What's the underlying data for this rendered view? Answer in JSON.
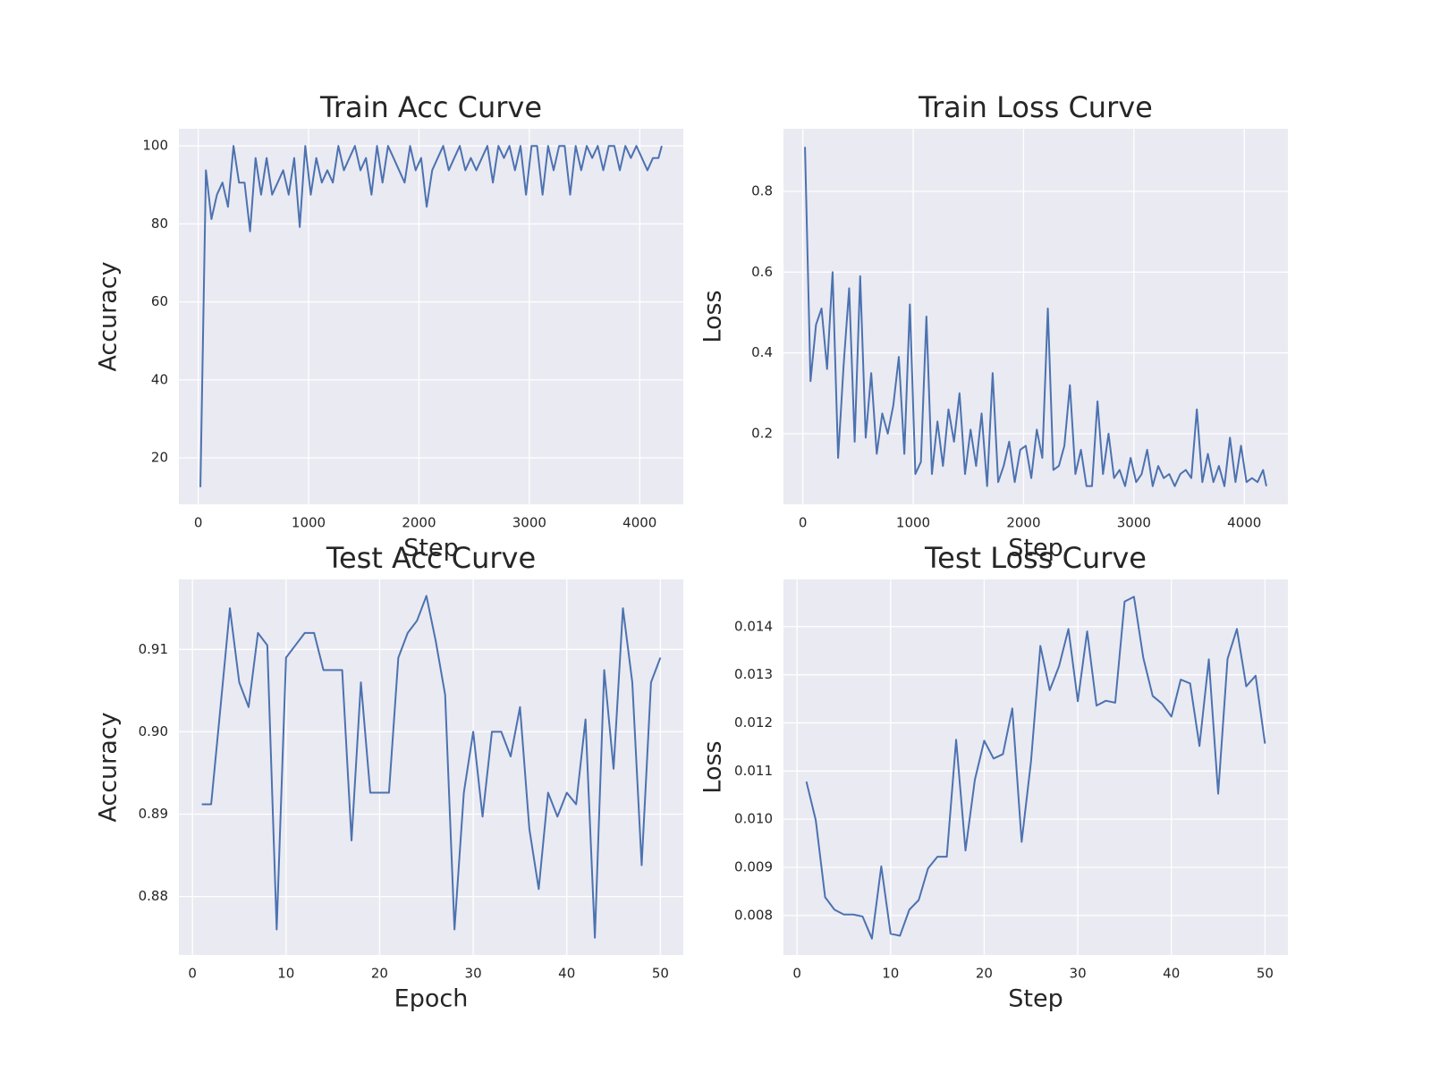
{
  "chart_data": [
    {
      "type": "line",
      "title": "Train Acc Curve",
      "xlabel": "Step",
      "ylabel": "Accuracy",
      "color": "#4c72b0",
      "grid": true,
      "x": [
        20,
        70,
        120,
        170,
        220,
        270,
        320,
        370,
        420,
        470,
        520,
        570,
        620,
        670,
        720,
        770,
        820,
        870,
        920,
        970,
        1020,
        1070,
        1120,
        1170,
        1220,
        1270,
        1320,
        1370,
        1420,
        1470,
        1520,
        1570,
        1620,
        1670,
        1720,
        1770,
        1820,
        1870,
        1920,
        1970,
        2020,
        2070,
        2120,
        2170,
        2220,
        2270,
        2320,
        2370,
        2420,
        2470,
        2520,
        2570,
        2620,
        2670,
        2720,
        2770,
        2820,
        2870,
        2920,
        2970,
        3020,
        3070,
        3120,
        3170,
        3220,
        3270,
        3320,
        3370,
        3420,
        3470,
        3520,
        3570,
        3620,
        3670,
        3720,
        3770,
        3820,
        3870,
        3920,
        3970,
        4020,
        4070,
        4120,
        4170,
        4200
      ],
      "values": [
        12.5,
        93.75,
        81.25,
        87.5,
        90.6,
        84.4,
        100,
        90.6,
        90.6,
        78.1,
        96.9,
        87.5,
        96.9,
        87.5,
        90.6,
        93.75,
        87.5,
        96.9,
        79.2,
        100,
        87.5,
        96.9,
        90.6,
        93.75,
        90.6,
        100,
        93.75,
        96.9,
        100,
        93.75,
        96.9,
        87.5,
        100,
        90.6,
        100,
        96.9,
        93.75,
        90.6,
        100,
        93.75,
        96.9,
        84.4,
        93.75,
        96.9,
        100,
        93.75,
        96.9,
        100,
        93.75,
        96.9,
        93.75,
        96.9,
        100,
        90.6,
        100,
        96.9,
        100,
        93.75,
        100,
        87.5,
        100,
        100,
        87.5,
        100,
        93.75,
        100,
        100,
        87.5,
        100,
        93.75,
        100,
        96.9,
        100,
        93.75,
        100,
        100,
        93.75,
        100,
        96.9,
        100,
        96.9,
        93.75,
        96.9,
        96.9,
        100
      ],
      "xlim": [
        -175,
        4395
      ],
      "ylim": [
        8.1,
        104.4
      ],
      "xticks": [
        0,
        1000,
        2000,
        3000,
        4000
      ],
      "yticks": [
        20,
        40,
        60,
        80,
        100
      ]
    },
    {
      "type": "line",
      "title": "Train Loss Curve",
      "xlabel": "Step",
      "ylabel": "Loss",
      "color": "#4c72b0",
      "grid": true,
      "x": [
        20,
        70,
        120,
        170,
        220,
        270,
        320,
        370,
        420,
        470,
        520,
        570,
        620,
        670,
        720,
        770,
        820,
        870,
        920,
        970,
        1020,
        1070,
        1120,
        1170,
        1220,
        1270,
        1320,
        1370,
        1420,
        1470,
        1520,
        1570,
        1620,
        1670,
        1720,
        1770,
        1820,
        1870,
        1920,
        1970,
        2020,
        2070,
        2120,
        2170,
        2220,
        2270,
        2320,
        2370,
        2420,
        2470,
        2520,
        2570,
        2620,
        2670,
        2720,
        2770,
        2820,
        2870,
        2920,
        2970,
        3020,
        3070,
        3120,
        3170,
        3220,
        3270,
        3320,
        3370,
        3420,
        3470,
        3520,
        3570,
        3620,
        3670,
        3720,
        3770,
        3820,
        3870,
        3920,
        3970,
        4020,
        4070,
        4120,
        4170,
        4200
      ],
      "values": [
        0.91,
        0.33,
        0.47,
        0.51,
        0.36,
        0.6,
        0.14,
        0.37,
        0.56,
        0.18,
        0.59,
        0.19,
        0.35,
        0.15,
        0.25,
        0.2,
        0.27,
        0.39,
        0.15,
        0.52,
        0.1,
        0.13,
        0.49,
        0.1,
        0.23,
        0.12,
        0.26,
        0.18,
        0.3,
        0.1,
        0.21,
        0.12,
        0.25,
        0.07,
        0.35,
        0.08,
        0.12,
        0.18,
        0.08,
        0.16,
        0.17,
        0.09,
        0.21,
        0.14,
        0.51,
        0.11,
        0.12,
        0.17,
        0.32,
        0.1,
        0.16,
        0.07,
        0.07,
        0.28,
        0.1,
        0.2,
        0.09,
        0.11,
        0.07,
        0.14,
        0.08,
        0.1,
        0.16,
        0.07,
        0.12,
        0.09,
        0.1,
        0.07,
        0.1,
        0.11,
        0.09,
        0.26,
        0.08,
        0.15,
        0.08,
        0.12,
        0.07,
        0.19,
        0.08,
        0.17,
        0.08,
        0.09,
        0.08,
        0.11,
        0.07
      ],
      "xlim": [
        -175,
        4395
      ],
      "ylim": [
        0.025,
        0.955
      ],
      "xticks": [
        0,
        1000,
        2000,
        3000,
        4000
      ],
      "yticks": [
        0.2,
        0.4,
        0.6,
        0.8
      ]
    },
    {
      "type": "line",
      "title": "Test Acc Curve",
      "xlabel": "Epoch",
      "ylabel": "Accuracy",
      "color": "#4c72b0",
      "grid": true,
      "x": [
        1,
        2,
        3,
        4,
        5,
        6,
        7,
        8,
        9,
        10,
        11,
        12,
        13,
        14,
        15,
        16,
        17,
        18,
        19,
        20,
        21,
        22,
        23,
        24,
        25,
        26,
        27,
        28,
        29,
        30,
        31,
        32,
        33,
        34,
        35,
        36,
        37,
        38,
        39,
        40,
        41,
        42,
        43,
        44,
        45,
        46,
        47,
        48,
        49,
        50
      ],
      "values": [
        0.8912,
        0.8912,
        0.903,
        0.915,
        0.906,
        0.903,
        0.912,
        0.9105,
        0.876,
        0.909,
        0.9105,
        0.912,
        0.912,
        0.9075,
        0.9075,
        0.9075,
        0.8868,
        0.906,
        0.8926,
        0.8926,
        0.8926,
        0.909,
        0.912,
        0.9135,
        0.9165,
        0.911,
        0.9045,
        0.876,
        0.8926,
        0.9,
        0.8897,
        0.9,
        0.9,
        0.897,
        0.903,
        0.8882,
        0.8809,
        0.8926,
        0.8897,
        0.8926,
        0.8912,
        0.9015,
        0.875,
        0.9075,
        0.8955,
        0.915,
        0.906,
        0.8838,
        0.906,
        0.909
      ],
      "xlim": [
        -1.45,
        52.45
      ],
      "ylim": [
        0.8729,
        0.9185
      ],
      "xticks": [
        0,
        10,
        20,
        30,
        40,
        50
      ],
      "yticks": [
        {
          "value": 0.88,
          "label": "0.88"
        },
        0.89,
        {
          "value": 0.9,
          "label": "0.90"
        },
        0.91
      ]
    },
    {
      "type": "line",
      "title": "Test Loss Curve",
      "xlabel": "Step",
      "ylabel": "Loss",
      "color": "#4c72b0",
      "grid": true,
      "x": [
        1,
        2,
        3,
        4,
        5,
        6,
        7,
        8,
        9,
        10,
        11,
        12,
        13,
        14,
        15,
        16,
        17,
        18,
        19,
        20,
        21,
        22,
        23,
        24,
        25,
        26,
        27,
        28,
        29,
        30,
        31,
        32,
        33,
        34,
        35,
        36,
        37,
        38,
        39,
        40,
        41,
        42,
        43,
        44,
        45,
        46,
        47,
        48,
        49,
        50
      ],
      "values": [
        0.01078,
        0.00998,
        0.00838,
        0.00812,
        0.00802,
        0.00802,
        0.00798,
        0.00752,
        0.00902,
        0.00762,
        0.00758,
        0.00812,
        0.00832,
        0.00898,
        0.00922,
        0.00922,
        0.01165,
        0.00935,
        0.01082,
        0.01163,
        0.01126,
        0.01135,
        0.0123,
        0.00953,
        0.0112,
        0.0136,
        0.01268,
        0.01318,
        0.01395,
        0.01245,
        0.0139,
        0.01236,
        0.01246,
        0.01242,
        0.01452,
        0.01462,
        0.01335,
        0.01256,
        0.0124,
        0.01213,
        0.0129,
        0.01282,
        0.01152,
        0.01332,
        0.01053,
        0.01333,
        0.01395,
        0.01276,
        0.01298,
        0.01157
      ],
      "xlim": [
        -1.45,
        52.45
      ],
      "ylim": [
        0.00718,
        0.01498
      ],
      "xticks": [
        0,
        10,
        20,
        30,
        40,
        50
      ],
      "yticks": [
        0.008,
        0.009,
        {
          "value": 0.01,
          "label": "0.010"
        },
        0.011,
        0.012,
        0.013,
        0.014
      ]
    }
  ]
}
